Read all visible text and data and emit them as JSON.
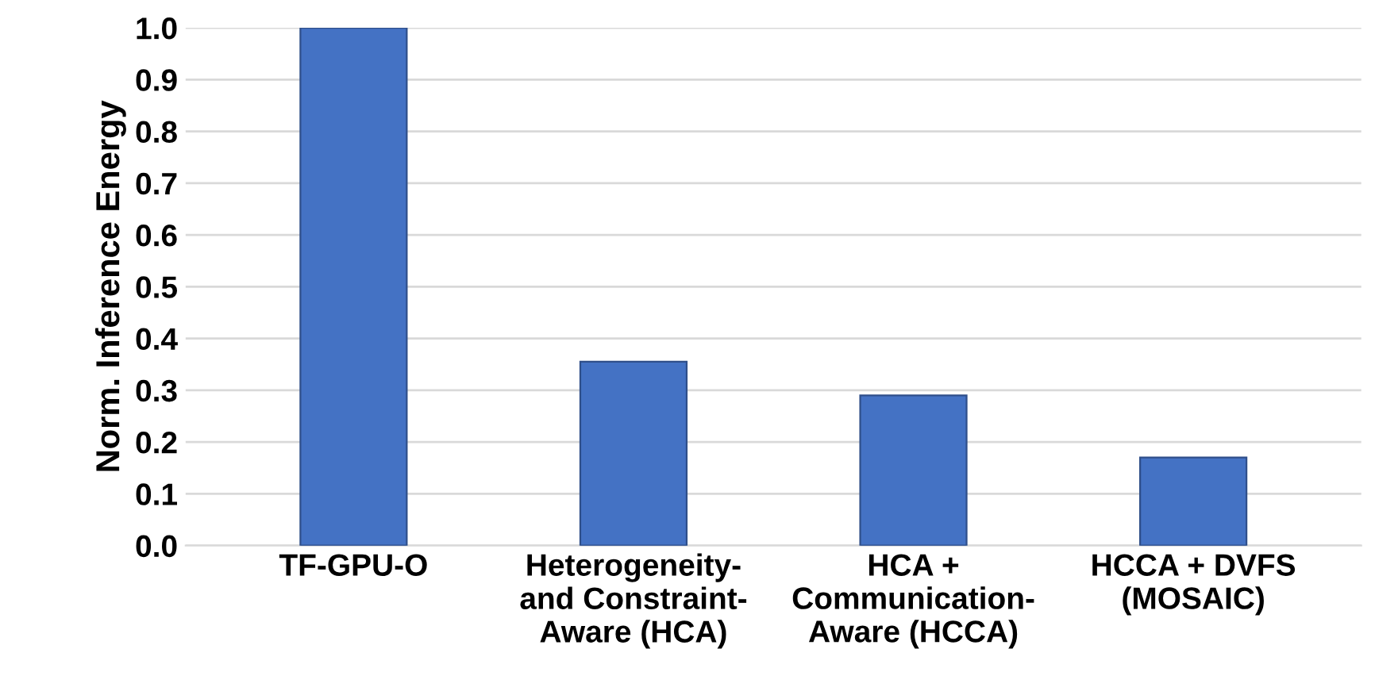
{
  "chart_data": {
    "type": "bar",
    "ylabel": "Norm. Inference Energy",
    "categories": [
      "TF-GPU-O",
      "Heterogeneity-\nand Constraint-\nAware (HCA)",
      "HCA +\nCommunication-\nAware (HCCA)",
      "HCCA + DVFS\n(MOSAIC)"
    ],
    "values": [
      1.0,
      0.355,
      0.29,
      0.17
    ],
    "color": "#4472c4",
    "ylim": [
      0,
      1.0
    ],
    "yticks": [
      {
        "value": 0,
        "label": "0.0"
      },
      0.1,
      0.2,
      0.3,
      0.4,
      0.5,
      0.6,
      0.7,
      0.8,
      0.9,
      {
        "value": 1.0,
        "label": "1.0"
      }
    ],
    "grid": "y"
  }
}
